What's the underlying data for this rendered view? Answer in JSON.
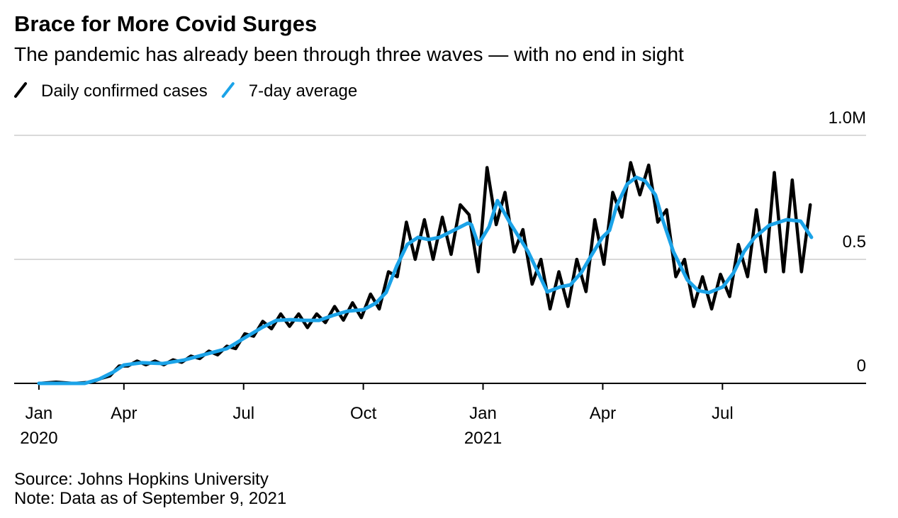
{
  "chart_data": {
    "type": "line",
    "title": "Brace for More Covid Surges",
    "subtitle": "The pandemic has already been through three waves — with no end in sight",
    "source": "Source: Johns Hopkins University",
    "note": "Note: Data as of September 9, 2021",
    "xlim": [
      0.25,
      21.6
    ],
    "xticks": [
      {
        "value": 0.87,
        "label": "Jan"
      },
      {
        "value": 3,
        "label": "Apr"
      },
      {
        "value": 6,
        "label": "Jul"
      },
      {
        "value": 9,
        "label": "Oct"
      },
      {
        "value": 12,
        "label": "Jan"
      },
      {
        "value": 15,
        "label": "Apr"
      },
      {
        "value": 18,
        "label": "Jul"
      }
    ],
    "year_labels": [
      {
        "value": 0.87,
        "label": "2020"
      },
      {
        "value": 12,
        "label": "2021"
      }
    ],
    "ylim": [
      0,
      1
    ],
    "yticks": [
      0,
      0.5,
      {
        "value": 1,
        "label": "1.0M"
      }
    ],
    "grid": true,
    "series": [
      {
        "name": "Daily confirmed cases",
        "color": "#000000",
        "x": [
          0.87,
          1.3,
          1.75,
          2.2,
          2.43,
          2.65,
          2.88,
          3.1,
          3.33,
          3.55,
          3.78,
          4.0,
          4.23,
          4.45,
          4.68,
          4.9,
          5.13,
          5.35,
          5.58,
          5.8,
          6.03,
          6.25,
          6.48,
          6.7,
          6.93,
          7.15,
          7.38,
          7.6,
          7.83,
          8.05,
          8.28,
          8.5,
          8.73,
          8.95,
          9.18,
          9.4,
          9.63,
          9.85,
          10.08,
          10.3,
          10.53,
          10.75,
          10.98,
          11.2,
          11.43,
          11.65,
          11.88,
          12.1,
          12.33,
          12.55,
          12.78,
          13.0,
          13.23,
          13.45,
          13.68,
          13.9,
          14.13,
          14.35,
          14.58,
          14.8,
          15.03,
          15.25,
          15.48,
          15.7,
          15.93,
          16.15,
          16.38,
          16.6,
          16.83,
          17.05,
          17.28,
          17.5,
          17.73,
          17.95,
          18.18,
          18.4,
          18.63,
          18.85,
          19.08,
          19.3,
          19.53,
          19.75,
          19.98,
          20.2
        ],
        "values": [
          0,
          0.005,
          0,
          0.005,
          0.02,
          0.03,
          0.07,
          0.07,
          0.09,
          0.075,
          0.09,
          0.075,
          0.095,
          0.085,
          0.11,
          0.1,
          0.13,
          0.115,
          0.15,
          0.14,
          0.2,
          0.19,
          0.25,
          0.22,
          0.28,
          0.23,
          0.28,
          0.225,
          0.28,
          0.245,
          0.31,
          0.255,
          0.325,
          0.265,
          0.36,
          0.3,
          0.45,
          0.43,
          0.65,
          0.5,
          0.66,
          0.5,
          0.67,
          0.52,
          0.72,
          0.68,
          0.45,
          0.87,
          0.64,
          0.77,
          0.53,
          0.62,
          0.4,
          0.5,
          0.3,
          0.45,
          0.31,
          0.5,
          0.37,
          0.66,
          0.48,
          0.77,
          0.67,
          0.89,
          0.76,
          0.88,
          0.65,
          0.7,
          0.43,
          0.5,
          0.31,
          0.43,
          0.3,
          0.44,
          0.35,
          0.56,
          0.43,
          0.7,
          0.45,
          0.85,
          0.45,
          0.82,
          0.45,
          0.72
        ]
      },
      {
        "name": "7-day average",
        "color": "#1ba3e8",
        "x": [
          0.87,
          2.02,
          2.38,
          2.74,
          3.0,
          3.45,
          3.98,
          4.51,
          5.04,
          5.58,
          5.99,
          6.47,
          6.82,
          7.18,
          7.53,
          7.89,
          8.24,
          8.6,
          9.0,
          9.31,
          9.57,
          9.84,
          10.1,
          10.37,
          10.64,
          10.91,
          11.26,
          11.62,
          11.71,
          11.88,
          12.15,
          12.36,
          12.68,
          13.13,
          13.61,
          13.93,
          14.19,
          14.46,
          14.72,
          14.99,
          15.17,
          15.35,
          15.61,
          15.84,
          16.06,
          16.32,
          16.5,
          16.77,
          17.12,
          17.39,
          17.66,
          18.01,
          18.28,
          18.54,
          18.81,
          19.17,
          19.61,
          19.96,
          20.23
        ],
        "values": [
          0,
          0,
          0.017,
          0.046,
          0.074,
          0.083,
          0.08,
          0.094,
          0.117,
          0.14,
          0.18,
          0.226,
          0.254,
          0.257,
          0.254,
          0.254,
          0.274,
          0.291,
          0.297,
          0.323,
          0.366,
          0.474,
          0.56,
          0.589,
          0.58,
          0.589,
          0.617,
          0.646,
          0.64,
          0.56,
          0.631,
          0.737,
          0.646,
          0.531,
          0.369,
          0.389,
          0.397,
          0.446,
          0.517,
          0.589,
          0.617,
          0.717,
          0.803,
          0.831,
          0.817,
          0.76,
          0.66,
          0.531,
          0.417,
          0.374,
          0.366,
          0.389,
          0.446,
          0.531,
          0.589,
          0.637,
          0.66,
          0.654,
          0.589
        ]
      }
    ]
  }
}
